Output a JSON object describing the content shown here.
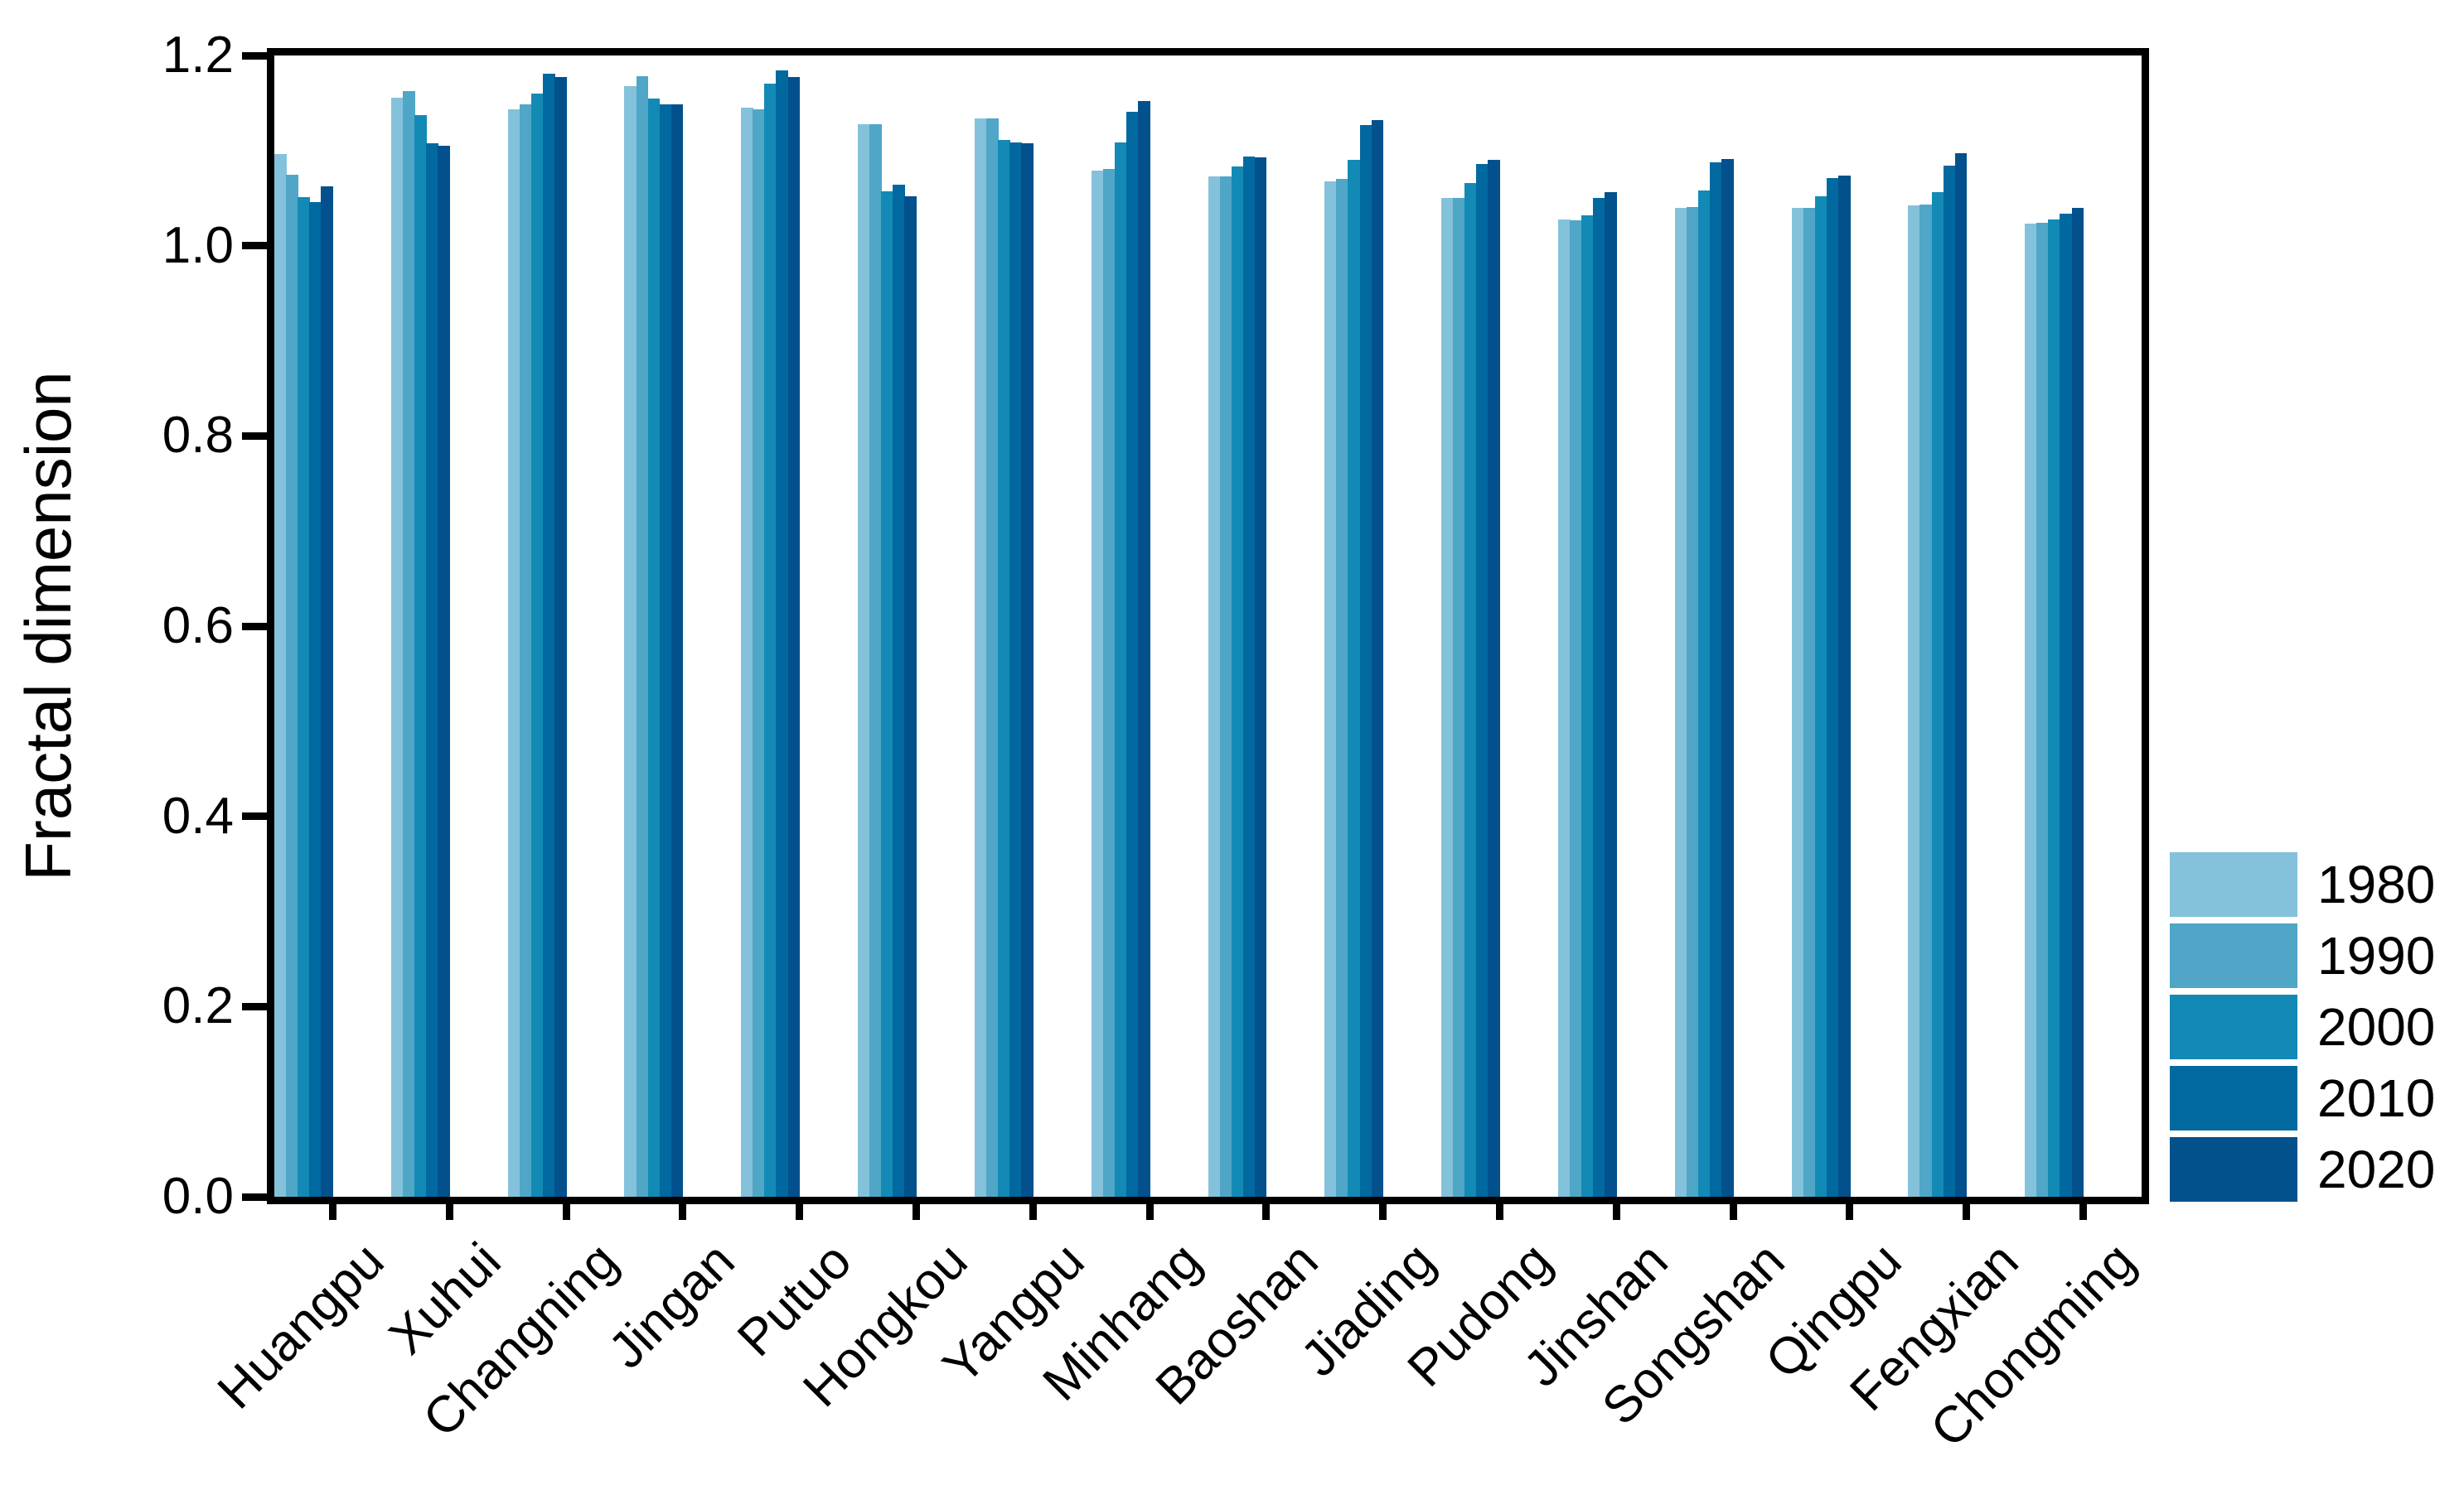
{
  "chart_data": {
    "type": "bar",
    "title": "",
    "xlabel": "",
    "ylabel": "Fractal dimension",
    "ylim": [
      0,
      1.2
    ],
    "ytick_labels": [
      "0.0",
      "0.2",
      "0.4",
      "0.6",
      "0.8",
      "1.0",
      "1.2"
    ],
    "grid": "off",
    "legend_position": "right-outside",
    "categories": [
      "Huangpu",
      "Xuhui",
      "Changning",
      "Jingan",
      "Putuo",
      "Hongkou",
      "Yangpu",
      "Minhang",
      "Baoshan",
      "Jiading",
      "Pudong",
      "Jinshan",
      "Songshan",
      "Qingpu",
      "Fengxian",
      "Chongming"
    ],
    "series": [
      {
        "name": "1980",
        "color": "#83C2DA",
        "values": [
          1.096,
          1.156,
          1.143,
          1.168,
          1.145,
          1.128,
          1.134,
          1.079,
          1.073,
          1.068,
          1.05,
          1.028,
          1.04,
          1.04,
          1.042,
          1.023
        ]
      },
      {
        "name": "1990",
        "color": "#4FA6C6",
        "values": [
          1.075,
          1.163,
          1.149,
          1.178,
          1.143,
          1.128,
          1.134,
          1.081,
          1.073,
          1.07,
          1.05,
          1.027,
          1.041,
          1.04,
          1.043,
          1.024
        ]
      },
      {
        "name": "2000",
        "color": "#128AB5",
        "values": [
          1.051,
          1.137,
          1.16,
          1.155,
          1.17,
          1.057,
          1.111,
          1.109,
          1.083,
          1.09,
          1.066,
          1.032,
          1.058,
          1.052,
          1.056,
          1.028
        ]
      },
      {
        "name": "2010",
        "color": "#01699F",
        "values": [
          1.046,
          1.108,
          1.181,
          1.149,
          1.184,
          1.064,
          1.109,
          1.141,
          1.094,
          1.127,
          1.086,
          1.05,
          1.088,
          1.071,
          1.084,
          1.034
        ]
      },
      {
        "name": "2020",
        "color": "#02508C",
        "values": [
          1.062,
          1.105,
          1.177,
          1.149,
          1.177,
          1.052,
          1.108,
          1.152,
          1.093,
          1.132,
          1.09,
          1.056,
          1.091,
          1.074,
          1.097,
          1.04
        ]
      }
    ]
  }
}
